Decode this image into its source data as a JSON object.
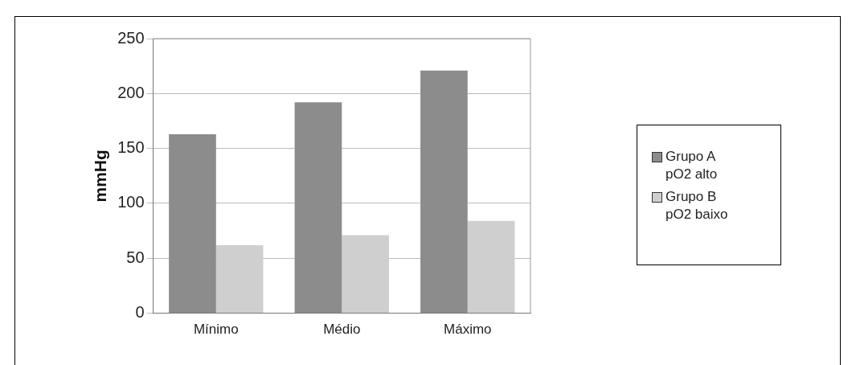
{
  "chart_data": {
    "type": "bar",
    "ylabel": "mmHg",
    "categories": [
      "Mínimo",
      "Médio",
      "Máximo"
    ],
    "series": [
      {
        "name": "Grupo A pO2 alto",
        "color": "#8c8c8c",
        "values": [
          163,
          192,
          221
        ]
      },
      {
        "name": "Grupo B pO2 baixo",
        "color": "#cfcfcf",
        "values": [
          62,
          71,
          84
        ]
      }
    ],
    "ylim": [
      0,
      250
    ],
    "yticks": [
      0,
      50,
      100,
      150,
      200,
      250
    ],
    "grid": "y",
    "legend": "right"
  }
}
